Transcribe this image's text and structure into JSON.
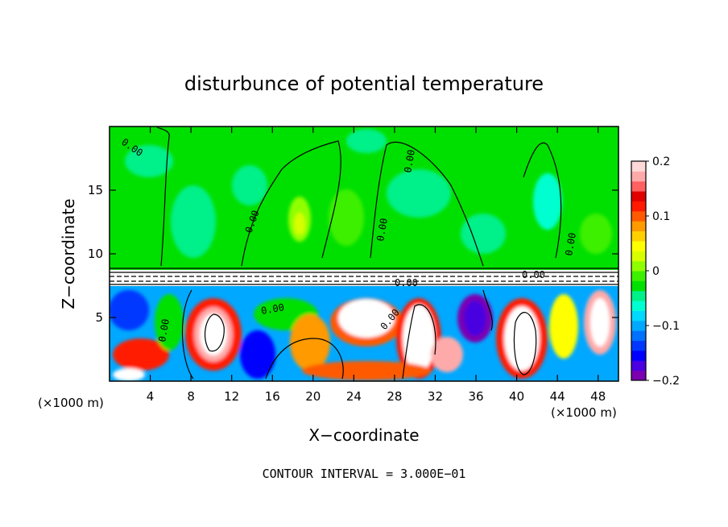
{
  "chart_data": {
    "type": "heatmap",
    "title": "disturbunce of potential temperature",
    "xlabel": "X−coordinate",
    "ylabel": "Z−coordinate",
    "x_unit_left": "(×1000 m)",
    "x_unit_right": "(×1000 m)",
    "footer": "CONTOUR INTERVAL = 3.000E−01",
    "xlim": [
      0,
      50
    ],
    "ylim": [
      0,
      20
    ],
    "x_ticks": [
      "4",
      "8",
      "12",
      "16",
      "20",
      "24",
      "28",
      "32",
      "36",
      "40",
      "44",
      "48"
    ],
    "x_tick_values": [
      4,
      8,
      12,
      16,
      20,
      24,
      28,
      32,
      36,
      40,
      44,
      48
    ],
    "y_ticks": [
      "5",
      "10",
      "15"
    ],
    "y_tick_values": [
      5,
      10,
      15
    ],
    "colorbar": {
      "range": [
        -0.2,
        0.2
      ],
      "ticks": [
        "0.2",
        "0.1",
        "0",
        "−0.1",
        "−0.2"
      ],
      "tick_values": [
        0.2,
        0.1,
        0,
        -0.1,
        -0.2
      ],
      "colors": [
        "#7b00b0",
        "#4a00e0",
        "#0000ff",
        "#0038ff",
        "#0070ff",
        "#00a8ff",
        "#00d8ff",
        "#00ffd0",
        "#00f08a",
        "#00e000",
        "#3cf000",
        "#90ff00",
        "#d8ff00",
        "#ffff00",
        "#ffd000",
        "#ff9a00",
        "#ff5a00",
        "#ff1a00",
        "#e00000",
        "#ff6060",
        "#ffaaaa",
        "#ffd8d8"
      ]
    },
    "contour_labels": [
      "0.00",
      "0.00",
      "0.00",
      "0.00",
      "0.00",
      "0.00",
      "0.00",
      "0.00",
      "0.00",
      "0.00"
    ],
    "grid": false
  }
}
